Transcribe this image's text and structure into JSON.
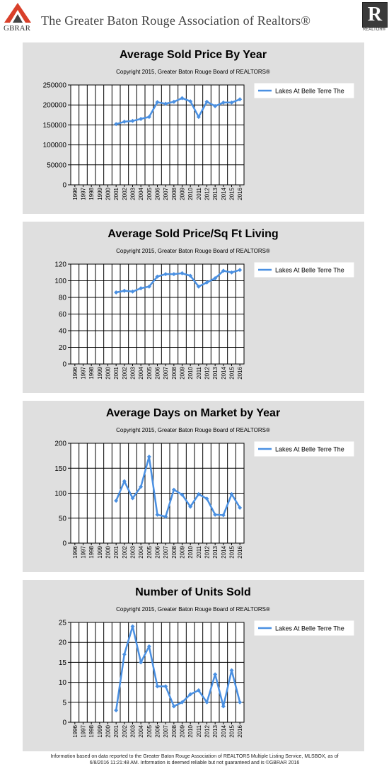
{
  "header": {
    "logo_text": "GBRAR",
    "title": "The Greater Baton Rouge Association of Realtors®",
    "realtor_logo_letter": "R",
    "realtor_logo_text": "REALTOR®"
  },
  "colors": {
    "line": "#4a90e2",
    "panel_bg": "#dfdfdf",
    "plot_bg": "#ffffff",
    "grid": "#000000",
    "logo_red": "#d9402a"
  },
  "chart_data": [
    {
      "type": "line",
      "title": "Average Sold Price By Year",
      "subtitle": "Copyright 2015, Greater Baton Rouge Board of REALTORS®",
      "categories": [
        "1996",
        "1997",
        "1998",
        "1999",
        "2000",
        "2001",
        "2002",
        "2003",
        "2004",
        "2005",
        "2006",
        "2007",
        "2008",
        "2009",
        "2010",
        "2011",
        "2012",
        "2013",
        "2014",
        "2015",
        "2016"
      ],
      "yticks": [
        "0",
        "50000",
        "100000",
        "150000",
        "200000",
        "250000"
      ],
      "ylim": [
        0,
        250000
      ],
      "series": [
        {
          "name": "Lakes At Belle Terre The",
          "values": [
            null,
            null,
            null,
            null,
            null,
            152000,
            158000,
            160000,
            165000,
            170000,
            207000,
            203000,
            208000,
            217000,
            209000,
            170000,
            208000,
            197000,
            206000,
            206000,
            214000
          ]
        }
      ],
      "grid": true,
      "legend": "top-right"
    },
    {
      "type": "line",
      "title": "Average Sold Price/Sq Ft Living",
      "subtitle": "Copyright 2015, Greater Baton Rouge Board of REALTORS®",
      "categories": [
        "1996",
        "1997",
        "1998",
        "1999",
        "2000",
        "2001",
        "2002",
        "2003",
        "2004",
        "2005",
        "2006",
        "2007",
        "2008",
        "2009",
        "2010",
        "2011",
        "2012",
        "2013",
        "2014",
        "2015",
        "2016"
      ],
      "yticks": [
        "0",
        "20",
        "40",
        "60",
        "80",
        "100",
        "120"
      ],
      "ylim": [
        0,
        120
      ],
      "series": [
        {
          "name": "Lakes At Belle Terre The",
          "values": [
            null,
            null,
            null,
            null,
            null,
            86,
            88,
            87,
            91,
            93,
            105,
            108,
            108,
            109,
            106,
            93,
            98,
            103,
            112,
            110,
            113
          ]
        }
      ],
      "grid": true,
      "legend": "top-right"
    },
    {
      "type": "line",
      "title": "Average Days on Market by Year",
      "subtitle": "Copyright 2015, Greater Baton Rouge Board of REALTORS®",
      "categories": [
        "1996",
        "1997",
        "1998",
        "1999",
        "2000",
        "2001",
        "2002",
        "2003",
        "2004",
        "2005",
        "2006",
        "2007",
        "2008",
        "2009",
        "2010",
        "2011",
        "2012",
        "2013",
        "2014",
        "2015",
        "2016"
      ],
      "yticks": [
        "0",
        "50",
        "100",
        "150",
        "200"
      ],
      "ylim": [
        0,
        200
      ],
      "series": [
        {
          "name": "Lakes At Belle Terre The",
          "values": [
            null,
            null,
            null,
            null,
            null,
            85,
            124,
            90,
            113,
            173,
            57,
            53,
            107,
            97,
            73,
            98,
            89,
            57,
            56,
            98,
            71
          ]
        }
      ],
      "grid": true,
      "legend": "top-right"
    },
    {
      "type": "line",
      "title": "Number of Units Sold",
      "subtitle": "Copyright 2015, Greater Baton Rouge Board of REALTORS®",
      "categories": [
        "1996",
        "1997",
        "1998",
        "1999",
        "2000",
        "2001",
        "2002",
        "2003",
        "2004",
        "2005",
        "2006",
        "2007",
        "2008",
        "2009",
        "2010",
        "2011",
        "2012",
        "2013",
        "2014",
        "2015",
        "2016"
      ],
      "yticks": [
        "0",
        "5",
        "10",
        "15",
        "20",
        "25"
      ],
      "ylim": [
        0,
        25
      ],
      "series": [
        {
          "name": "Lakes At Belle Terre The",
          "values": [
            null,
            null,
            null,
            null,
            null,
            3,
            17,
            24,
            15,
            19,
            9,
            9,
            4,
            5,
            7,
            8,
            5,
            12,
            4,
            13,
            5
          ]
        }
      ],
      "grid": true,
      "legend": "top-right"
    }
  ],
  "footer": {
    "line1": "Information based on data reported to the Greater Baton Rouge Association of REALTORS Multiple Listing Service, MLSBOX, as of",
    "line2": "6/8/2016 11:21:48 AM. Information is deemed reliable but not guaranteed and is ©GBRAR 2016"
  }
}
